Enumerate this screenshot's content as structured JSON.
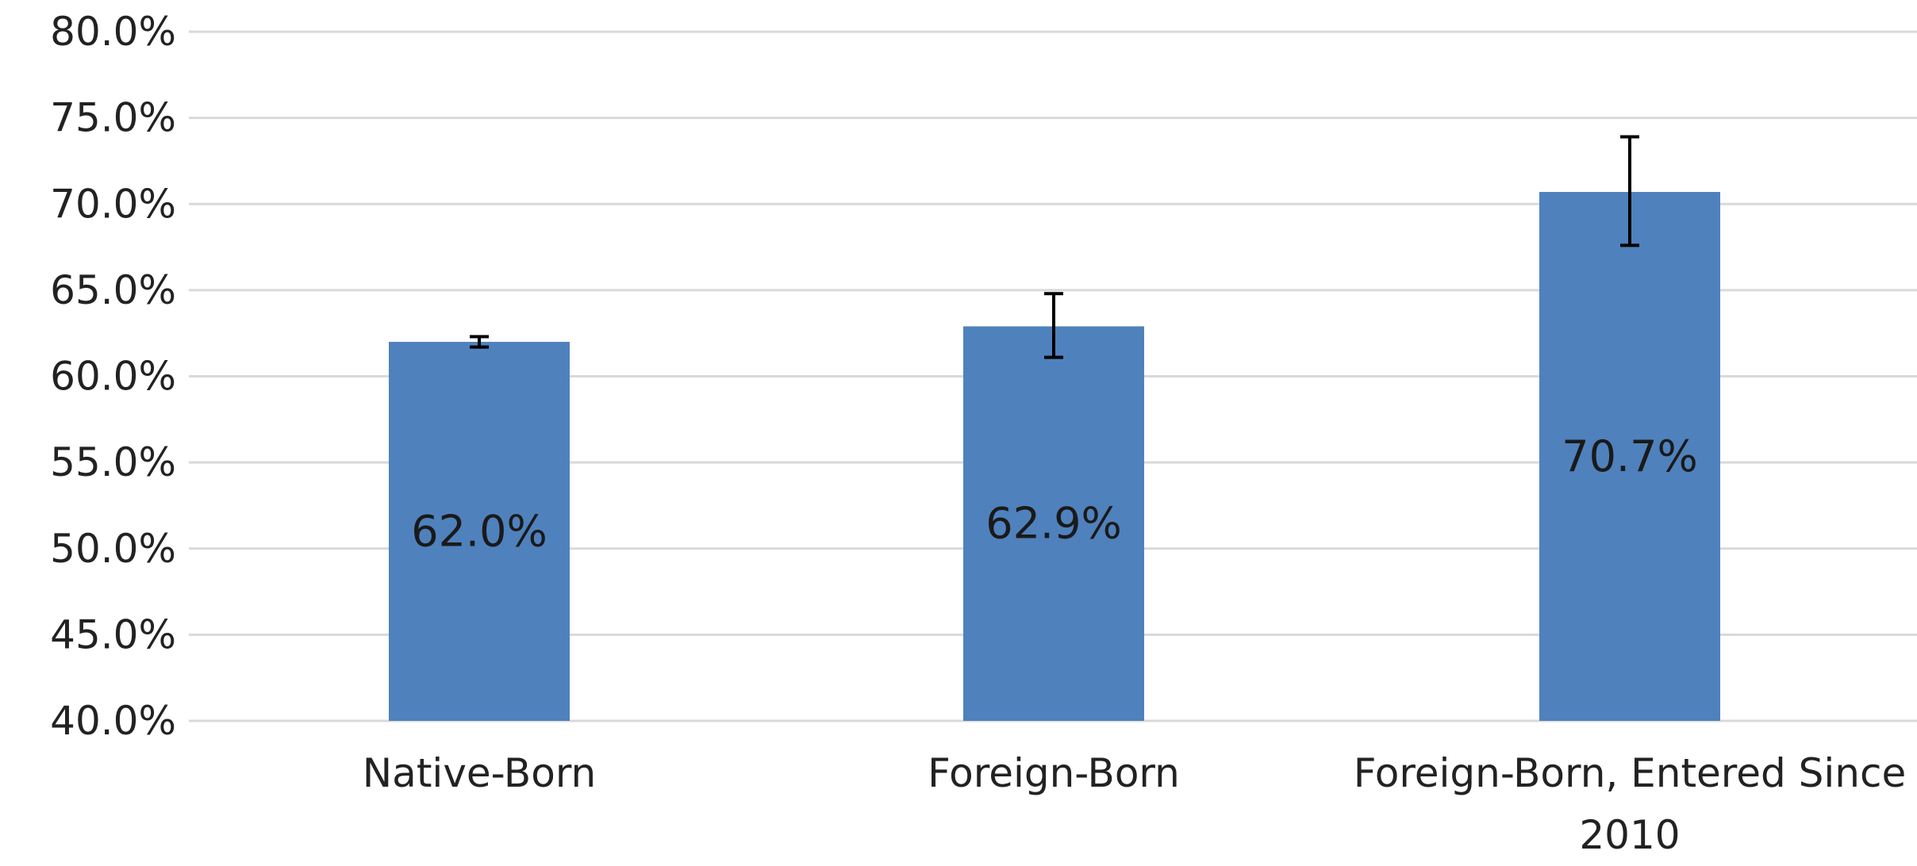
{
  "chart_data": {
    "type": "bar",
    "title": "",
    "xlabel": "",
    "ylabel": "",
    "categories": [
      "Native-Born",
      "Foreign-Born",
      "Foreign-Born, Entered Since 2010"
    ],
    "category_label_lines": [
      [
        "Native-Born"
      ],
      [
        "Foreign-Born"
      ],
      [
        "Foreign-Born, Entered Since",
        "2010"
      ]
    ],
    "values": [
      62.0,
      62.9,
      70.7
    ],
    "data_labels": [
      "62.0%",
      "62.9%",
      "70.7%"
    ],
    "error_bars": [
      {
        "low": 61.7,
        "high": 62.3
      },
      {
        "low": 61.1,
        "high": 64.8
      },
      {
        "low": 67.6,
        "high": 73.9
      }
    ],
    "ylim": [
      40,
      80
    ],
    "y_ticks": [
      40,
      45,
      50,
      55,
      60,
      65,
      70,
      75,
      80
    ],
    "y_tick_labels": [
      "40.0%",
      "45.0%",
      "50.0%",
      "55.0%",
      "60.0%",
      "65.0%",
      "70.0%",
      "75.0%",
      "80.0%"
    ],
    "grid": true,
    "legend": "none",
    "colors": {
      "bar": "#4f81bd",
      "grid": "#d9d9d9",
      "error_bar": "#000000",
      "text": "#222222"
    }
  }
}
